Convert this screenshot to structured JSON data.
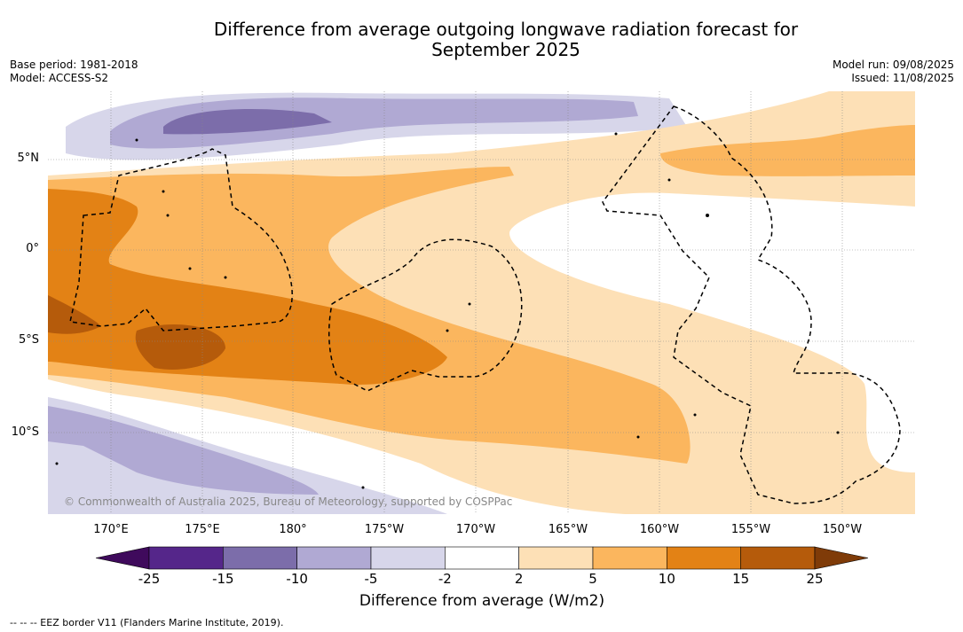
{
  "title": "Difference from average outgoing longwave radiation forecast for September 2025",
  "meta": {
    "base_period": "Base period: 1981-2018",
    "model": "Model: ACCESS-S2",
    "model_run": "Model run: 09/08/2025",
    "issued": "Issued: 11/08/2025"
  },
  "map": {
    "lat_labels": [
      "5°N",
      "0°",
      "5°S",
      "10°S"
    ],
    "lon_labels": [
      "170°E",
      "175°E",
      "180°",
      "175°W",
      "170°W",
      "165°W",
      "160°W",
      "155°W",
      "150°W"
    ],
    "copyright": "© Commonwealth of Australia 2025, Bureau of Meteorology, supported by COSPPac"
  },
  "colorbar": {
    "ticks": [
      "-25",
      "-15",
      "-10",
      "-5",
      "-2",
      "2",
      "5",
      "10",
      "15",
      "25"
    ],
    "colors": [
      "#3f0a5c",
      "#55268a",
      "#7c6daa",
      "#b0a9d3",
      "#d7d6ea",
      "#ffffff",
      "#fde0b6",
      "#fbb65e",
      "#e38215",
      "#b55b0b",
      "#7f3b08"
    ],
    "label": "Difference from average (W/m2)"
  },
  "legend_note": "-- -- -- EEZ border V11 (Flanders Marine Institute, 2019)."
}
